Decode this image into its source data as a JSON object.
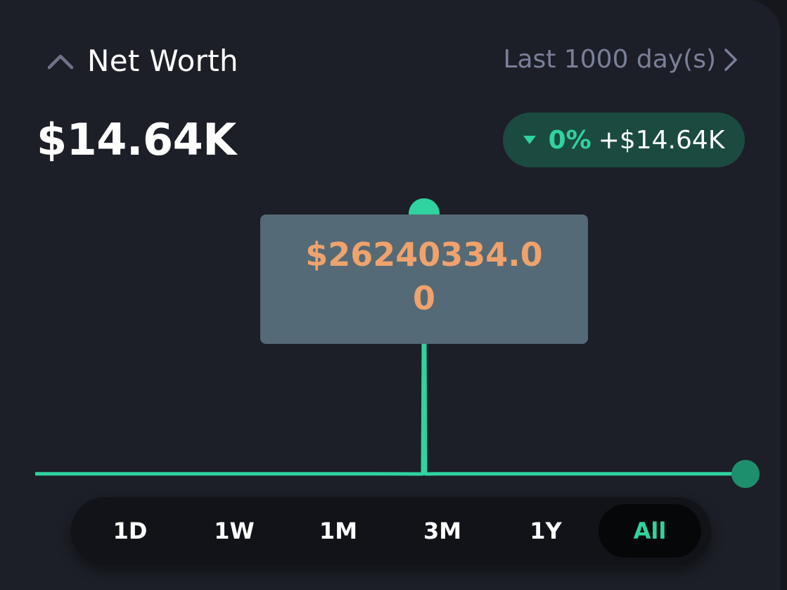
{
  "header": {
    "title": "Net Worth",
    "range_label": "Last 1000 day(s)",
    "collapse_icon": "chevron-up-icon",
    "range_icon": "chevron-right-icon"
  },
  "summary": {
    "value": "$14.64K",
    "change_percent": "0%",
    "change_amount": "+$14.64K",
    "change_icon": "triangle-down-icon"
  },
  "tooltip": {
    "value": "$26240334.00"
  },
  "periods": [
    "1D",
    "1W",
    "1M",
    "3M",
    "1Y",
    "All"
  ],
  "selected_period": "All",
  "colors": {
    "background": "#1c1f27",
    "accent": "#2fd39f",
    "tooltip_bg": "#546a76",
    "tooltip_text": "#f0a26c",
    "muted": "#7b8099"
  },
  "chart_data": {
    "type": "line",
    "series": [
      {
        "values": [
          14640,
          14640,
          14640,
          14640,
          14640,
          14640,
          14640,
          14640,
          14640,
          14640,
          14640,
          14640,
          26240334.0,
          14640,
          14640,
          14640,
          14640,
          14640,
          14640,
          14640,
          14640,
          14640,
          14640,
          14640
        ]
      }
    ],
    "highlighted_value": 26240334.0
  }
}
